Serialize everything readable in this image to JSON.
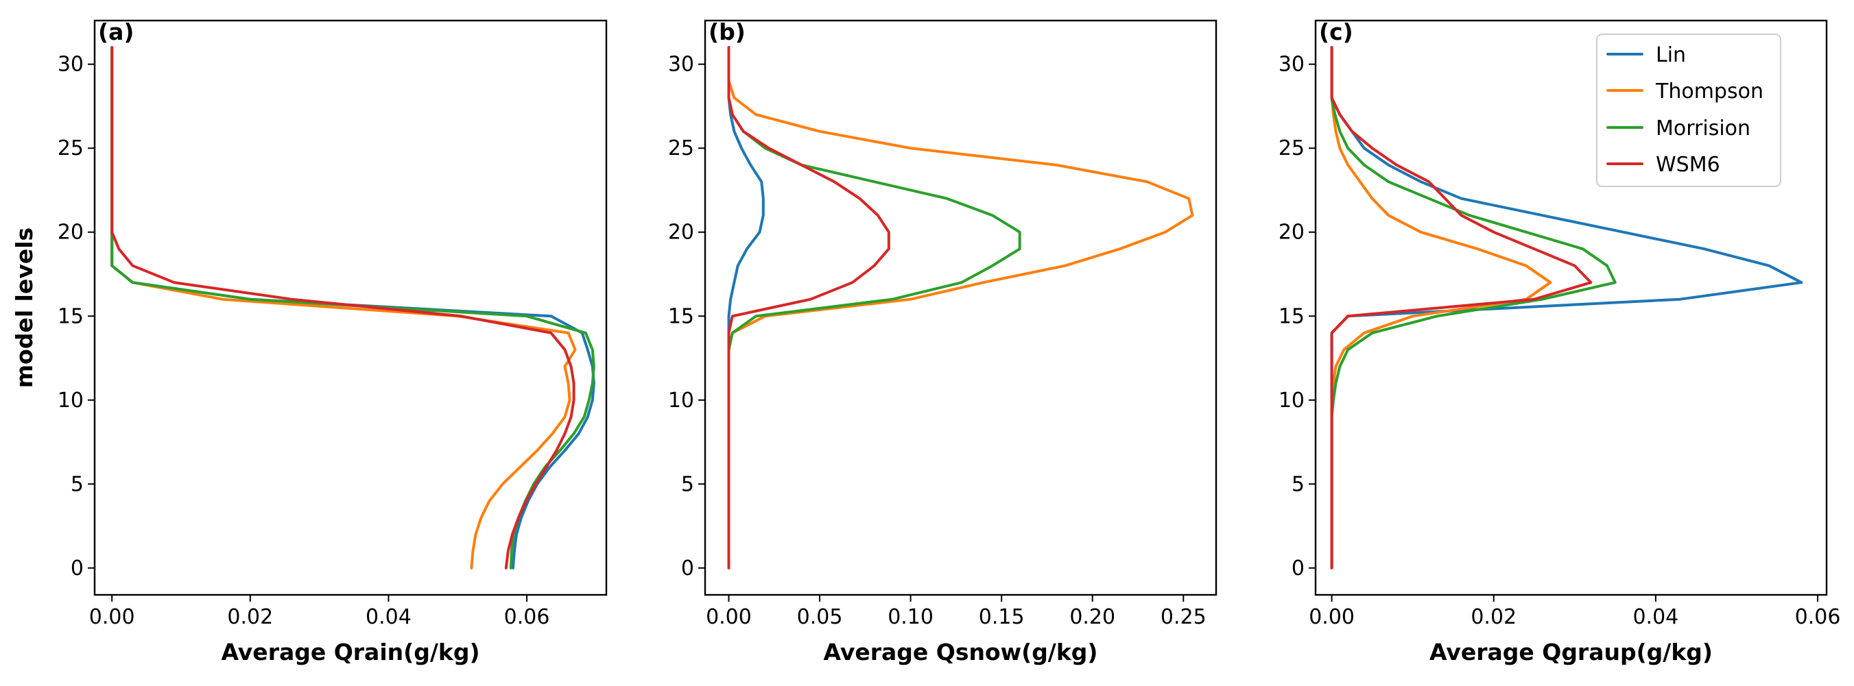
{
  "colors": {
    "lin": "#1f77b4",
    "thompson": "#ff7f0e",
    "morrison": "#2ca02c",
    "wsm6": "#d62728"
  },
  "legend": {
    "placement": "top-right of panel (c)",
    "entries": [
      "Lin",
      "Thompson",
      "Morrision",
      "WSM6"
    ]
  },
  "chart_data": [
    {
      "type": "line",
      "panel_label": "(a)",
      "xlabel": "Average Qrain(g/kg)",
      "ylabel": "model levels",
      "xlim": [
        -0.0025,
        0.0715
      ],
      "ylim": [
        -1.6,
        32.6
      ],
      "xticks": [
        0,
        0.02,
        0.04,
        0.06
      ],
      "xtick_labels": [
        "0.00",
        "0.02",
        "0.04",
        "0.06"
      ],
      "yticks": [
        0,
        5,
        10,
        15,
        20,
        25,
        30
      ],
      "ytick_labels": [
        "0",
        "5",
        "10",
        "15",
        "20",
        "25",
        "30"
      ],
      "grid": false,
      "y": [
        0,
        1,
        2,
        3,
        4,
        5,
        6,
        7,
        8,
        9,
        10,
        11,
        12,
        13,
        14,
        15,
        16,
        17,
        18,
        19,
        20,
        21,
        22,
        23,
        24,
        25,
        26,
        27,
        28,
        29,
        30,
        31
      ],
      "series": [
        {
          "name": "Lin",
          "color_key": "lin",
          "x": [
            0.058,
            0.0582,
            0.0585,
            0.0592,
            0.0602,
            0.0615,
            0.0633,
            0.0655,
            0.0675,
            0.0688,
            0.0695,
            0.0697,
            0.0695,
            0.0688,
            0.068,
            0.0635,
            0.02,
            0.003,
            0,
            0,
            0,
            0,
            0,
            0,
            0,
            0,
            0,
            0,
            0,
            0,
            0,
            0
          ]
        },
        {
          "name": "Thompson",
          "color_key": "thompson",
          "x": [
            0.052,
            0.0522,
            0.0526,
            0.0534,
            0.0546,
            0.0565,
            0.059,
            0.0615,
            0.0637,
            0.0655,
            0.0662,
            0.066,
            0.0655,
            0.067,
            0.066,
            0.05,
            0.016,
            0.003,
            0,
            0,
            0,
            0,
            0,
            0,
            0,
            0,
            0,
            0,
            0,
            0,
            0,
            0
          ]
        },
        {
          "name": "Morrision",
          "color_key": "morrison",
          "x": [
            0.0577,
            0.0578,
            0.0581,
            0.0588,
            0.0598,
            0.061,
            0.0626,
            0.0648,
            0.0668,
            0.0683,
            0.069,
            0.0695,
            0.0697,
            0.0695,
            0.0685,
            0.06,
            0.02,
            0.003,
            0,
            0,
            0,
            0,
            0,
            0,
            0,
            0,
            0,
            0,
            0,
            0,
            0,
            0
          ]
        },
        {
          "name": "WSM6",
          "color_key": "wsm6",
          "x": [
            0.057,
            0.0573,
            0.0579,
            0.0588,
            0.0599,
            0.0613,
            0.0628,
            0.0643,
            0.0655,
            0.0664,
            0.0668,
            0.0668,
            0.0664,
            0.0655,
            0.0635,
            0.0505,
            0.026,
            0.009,
            0.003,
            0.001,
            0,
            0,
            0,
            0,
            0,
            0,
            0,
            0,
            0,
            0,
            0,
            0
          ]
        }
      ]
    },
    {
      "type": "line",
      "panel_label": "(b)",
      "xlabel": "Average Qsnow(g/kg)",
      "ylabel": "",
      "xlim": [
        -0.013,
        0.268
      ],
      "ylim": [
        -1.6,
        32.6
      ],
      "xticks": [
        0,
        0.05,
        0.1,
        0.15,
        0.2,
        0.25
      ],
      "xtick_labels": [
        "0.00",
        "0.05",
        "0.10",
        "0.15",
        "0.20",
        "0.25"
      ],
      "yticks": [
        0,
        5,
        10,
        15,
        20,
        25,
        30
      ],
      "ytick_labels": [
        "0",
        "5",
        "10",
        "15",
        "20",
        "25",
        "30"
      ],
      "grid": false,
      "y": [
        0,
        1,
        2,
        3,
        4,
        5,
        6,
        7,
        8,
        9,
        10,
        11,
        12,
        13,
        14,
        15,
        16,
        17,
        18,
        19,
        20,
        21,
        22,
        23,
        24,
        25,
        26,
        27,
        28,
        29,
        30,
        31
      ],
      "series": [
        {
          "name": "Lin",
          "color_key": "lin",
          "x": [
            0,
            0,
            0,
            0,
            0,
            0,
            0,
            0,
            0,
            0,
            0,
            0,
            0,
            0,
            0,
            0,
            0.001,
            0.003,
            0.005,
            0.01,
            0.017,
            0.019,
            0.019,
            0.018,
            0.012,
            0.007,
            0.003,
            0.001,
            0,
            0,
            0,
            0
          ]
        },
        {
          "name": "Thompson",
          "color_key": "thompson",
          "x": [
            0,
            0,
            0,
            0,
            0,
            0,
            0,
            0,
            0,
            0,
            0,
            0,
            0,
            0,
            0.002,
            0.02,
            0.1,
            0.14,
            0.185,
            0.215,
            0.24,
            0.255,
            0.253,
            0.23,
            0.18,
            0.1,
            0.05,
            0.015,
            0.003,
            0,
            0,
            0
          ]
        },
        {
          "name": "Morrision",
          "color_key": "morrison",
          "x": [
            0,
            0,
            0,
            0,
            0,
            0,
            0,
            0,
            0,
            0,
            0,
            0,
            0,
            0,
            0.002,
            0.015,
            0.09,
            0.128,
            0.145,
            0.16,
            0.16,
            0.145,
            0.12,
            0.08,
            0.04,
            0.02,
            0.008,
            0.002,
            0,
            0,
            0,
            0
          ]
        },
        {
          "name": "WSM6",
          "color_key": "wsm6",
          "x": [
            0,
            0,
            0,
            0,
            0,
            0,
            0,
            0,
            0,
            0,
            0,
            0,
            0,
            0,
            0,
            0.002,
            0.045,
            0.068,
            0.08,
            0.088,
            0.088,
            0.082,
            0.072,
            0.058,
            0.04,
            0.022,
            0.008,
            0.002,
            0,
            0,
            0,
            0
          ]
        }
      ]
    },
    {
      "type": "line",
      "panel_label": "(c)",
      "xlabel": "Average Qgraup(g/kg)",
      "ylabel": "",
      "xlim": [
        -0.002,
        0.0611
      ],
      "ylim": [
        -1.6,
        32.6
      ],
      "xticks": [
        0,
        0.02,
        0.04,
        0.06
      ],
      "xtick_labels": [
        "0.00",
        "0.02",
        "0.04",
        "0.06"
      ],
      "yticks": [
        0,
        5,
        10,
        15,
        20,
        25,
        30
      ],
      "ytick_labels": [
        "0",
        "5",
        "10",
        "15",
        "20",
        "25",
        "30"
      ],
      "grid": false,
      "y": [
        0,
        1,
        2,
        3,
        4,
        5,
        6,
        7,
        8,
        9,
        10,
        11,
        12,
        13,
        14,
        15,
        16,
        17,
        18,
        19,
        20,
        21,
        22,
        23,
        24,
        25,
        26,
        27,
        28,
        29,
        30,
        31
      ],
      "series": [
        {
          "name": "Lin",
          "color_key": "lin",
          "x": [
            0,
            0,
            0,
            0,
            0,
            0,
            0,
            0,
            0,
            0,
            0,
            0,
            0,
            0,
            0,
            0.002,
            0.043,
            0.058,
            0.054,
            0.046,
            0.036,
            0.026,
            0.016,
            0.011,
            0.007,
            0.004,
            0.0025,
            0.001,
            0,
            0,
            0,
            0
          ]
        },
        {
          "name": "Thompson",
          "color_key": "thompson",
          "x": [
            0,
            0,
            0,
            0,
            0,
            0,
            0,
            0,
            0,
            0,
            0,
            0.0002,
            0.0005,
            0.0015,
            0.004,
            0.01,
            0.024,
            0.027,
            0.024,
            0.018,
            0.011,
            0.007,
            0.005,
            0.0035,
            0.002,
            0.001,
            0.0005,
            0.0002,
            0,
            0,
            0,
            0
          ]
        },
        {
          "name": "Morrision",
          "color_key": "morrison",
          "x": [
            0,
            0,
            0,
            0,
            0,
            0,
            0,
            0,
            0,
            0,
            0.0002,
            0.0005,
            0.001,
            0.002,
            0.005,
            0.013,
            0.026,
            0.035,
            0.034,
            0.031,
            0.024,
            0.017,
            0.012,
            0.007,
            0.004,
            0.002,
            0.001,
            0.0004,
            0,
            0,
            0,
            0
          ]
        },
        {
          "name": "WSM6",
          "color_key": "wsm6",
          "x": [
            0,
            0,
            0,
            0,
            0,
            0,
            0,
            0,
            0,
            0,
            0,
            0,
            0,
            0,
            0,
            0.002,
            0.025,
            0.032,
            0.03,
            0.025,
            0.02,
            0.016,
            0.014,
            0.012,
            0.008,
            0.005,
            0.0025,
            0.001,
            0,
            0,
            0,
            0
          ]
        }
      ]
    }
  ]
}
